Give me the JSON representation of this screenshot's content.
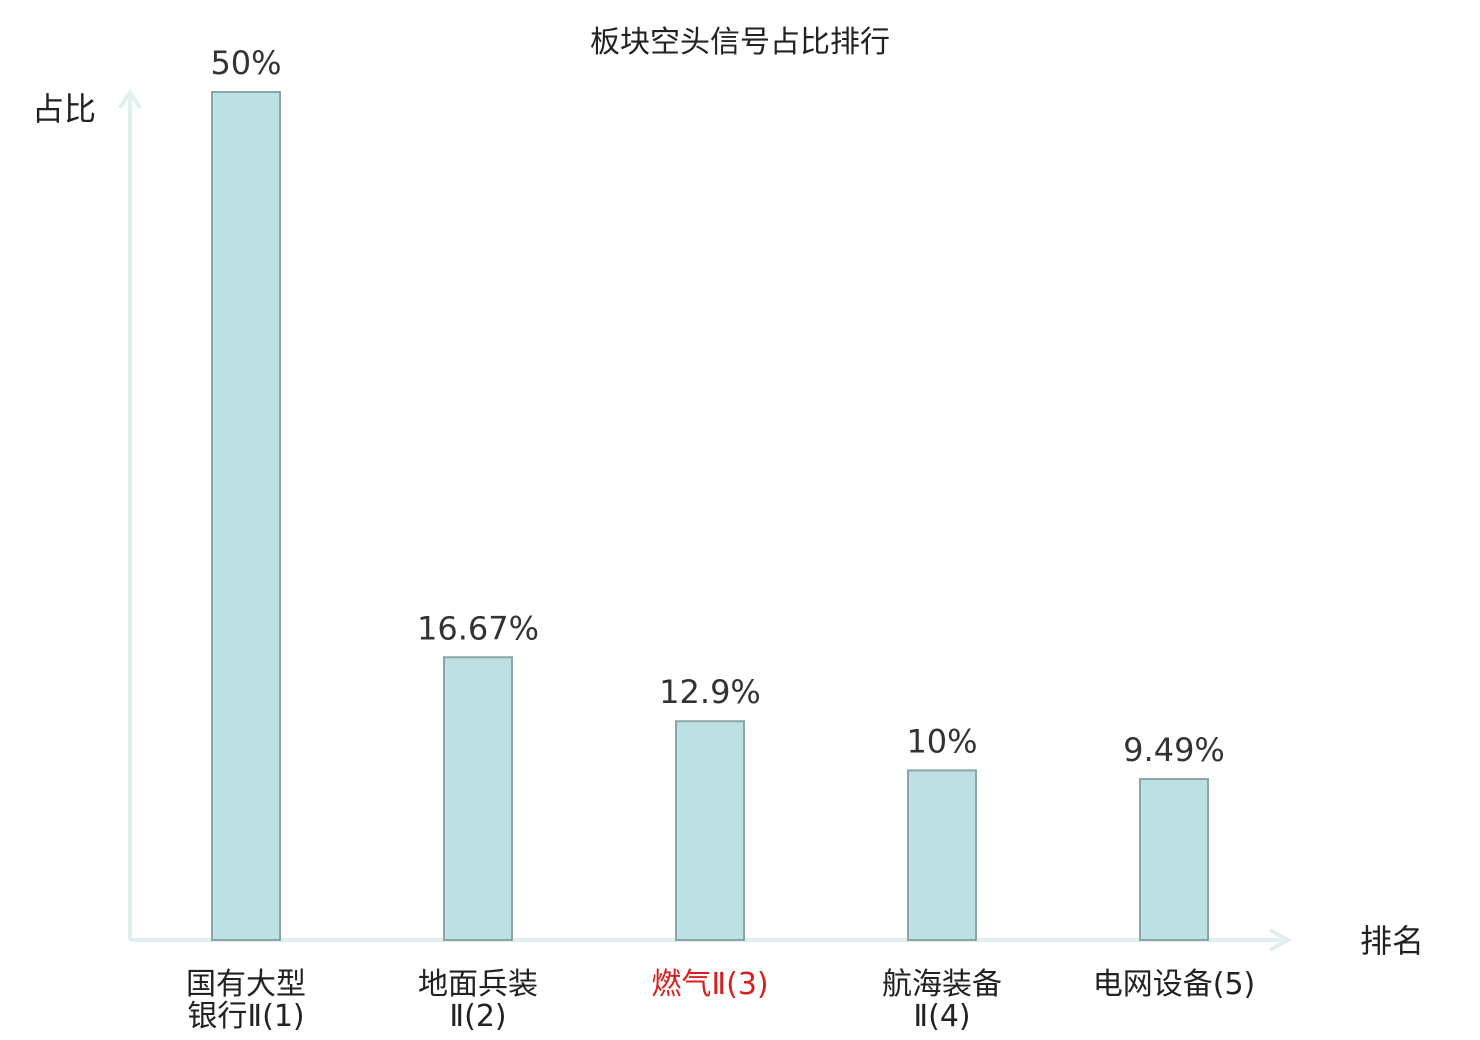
{
  "chart_data": {
    "type": "bar",
    "title": "板块空头信号占比排行",
    "xlabel": "排名",
    "ylabel": "占比",
    "ylim": [
      0,
      50
    ],
    "categories": [
      [
        "国有大型",
        "银行Ⅱ(1)"
      ],
      [
        "地面兵装",
        "Ⅱ(2)"
      ],
      [
        "燃气Ⅱ(3)"
      ],
      [
        "航海装备",
        "Ⅱ(4)"
      ],
      [
        "电网设备(5)"
      ]
    ],
    "values": [
      50,
      16.67,
      12.9,
      10,
      9.49
    ],
    "value_labels": [
      "50%",
      "16.67%",
      "12.9%",
      "10%",
      "9.49%"
    ],
    "highlight_index": 2,
    "grid": false
  },
  "colors": {
    "bar_fill": "#bde0e2",
    "bar_stroke": "#8aa6a8",
    "axis": "#dff0ef",
    "highlight_label": "#d62020"
  }
}
